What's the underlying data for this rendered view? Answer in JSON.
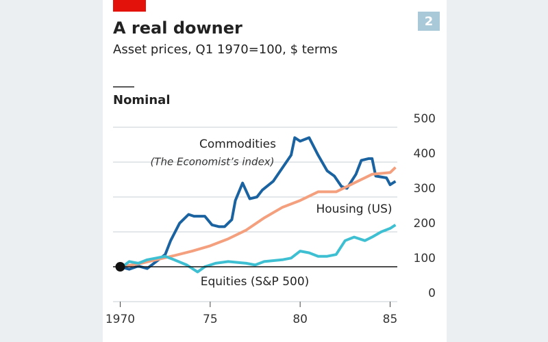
{
  "chart_data": {
    "type": "line",
    "title": "A real downer",
    "subtitle": "Asset prices, Q1 1970=100, $ terms",
    "panel_label": "Nominal",
    "badge": "2",
    "annotation": "(The Economist’s index)",
    "xlim": [
      1969.6,
      1985.4
    ],
    "xticks": [
      1970,
      {
        "value": 1975,
        "label": "75"
      },
      {
        "value": 1980,
        "label": "80"
      },
      {
        "value": 1985,
        "label": "85"
      }
    ],
    "ylim": [
      0,
      500
    ],
    "yticks": [
      0,
      100,
      200,
      300,
      400,
      500
    ],
    "grid": true,
    "reference_line": 100,
    "series": [
      {
        "name": "Commodities",
        "color": "#1a63a0",
        "x": [
          1970,
          1970.5,
          1971,
          1971.5,
          1972,
          1972.5,
          1972.8,
          1973.3,
          1973.8,
          1974.1,
          1974.7,
          1975.1,
          1975.5,
          1975.8,
          1976.2,
          1976.4,
          1976.8,
          1977.2,
          1977.6,
          1977.9,
          1978.5,
          1979.1,
          1979.5,
          1979.7,
          1980,
          1980.5,
          1981,
          1981.5,
          1981.9,
          1982.3,
          1982.6,
          1983.1,
          1983.4,
          1983.8,
          1984,
          1984.2,
          1984.8,
          1985,
          1985.3
        ],
        "values": [
          100,
          93,
          102,
          95,
          115,
          135,
          175,
          225,
          250,
          245,
          245,
          220,
          215,
          215,
          235,
          290,
          340,
          295,
          300,
          320,
          345,
          390,
          420,
          470,
          460,
          470,
          420,
          375,
          360,
          330,
          325,
          365,
          405,
          410,
          410,
          360,
          355,
          335,
          345
        ]
      },
      {
        "name": "Housing (US)",
        "color": "#f4a07f",
        "x": [
          1970,
          1971,
          1972,
          1973,
          1974,
          1975,
          1976,
          1977,
          1978,
          1979,
          1980,
          1981,
          1982,
          1983,
          1984,
          1985,
          1985.3
        ],
        "values": [
          100,
          108,
          120,
          132,
          145,
          160,
          180,
          205,
          240,
          270,
          290,
          315,
          315,
          340,
          365,
          370,
          385
        ]
      },
      {
        "name": "Equities (S&P 500)",
        "color": "#3fc0d2",
        "x": [
          1970,
          1970.5,
          1971,
          1971.5,
          1972,
          1972.5,
          1973,
          1973.7,
          1974.3,
          1974.7,
          1975.3,
          1976,
          1977,
          1977.5,
          1978,
          1979,
          1979.5,
          1980,
          1980.5,
          1981,
          1981.5,
          1982,
          1982.5,
          1983,
          1983.6,
          1984,
          1984.5,
          1985,
          1985.3
        ],
        "values": [
          95,
          115,
          110,
          120,
          125,
          130,
          120,
          105,
          85,
          100,
          110,
          115,
          110,
          105,
          115,
          120,
          125,
          145,
          140,
          130,
          130,
          135,
          175,
          185,
          175,
          185,
          200,
          210,
          220
        ]
      }
    ]
  }
}
